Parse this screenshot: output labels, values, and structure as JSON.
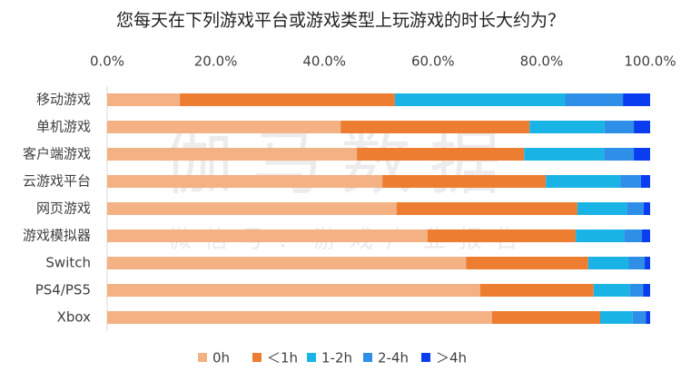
{
  "chart_data": {
    "type": "stacked-bar-horizontal",
    "title": "您每天在下列游戏平台或游戏类型上玩游戏的时长大约为？",
    "watermark": "伽马数据",
    "watermark_subtitle": "微信号：游戏产业报告",
    "categories": [
      "移动游戏",
      "单机游戏",
      "客户端游戏",
      "云游戏平台",
      "网页游戏",
      "游戏模拟器",
      "Switch",
      "PS4/PS5",
      "Xbox"
    ],
    "series": [
      {
        "name": "0h",
        "color": "#f4b183",
        "values": [
          13.4,
          43.0,
          46.0,
          50.7,
          53.3,
          59.0,
          66.1,
          68.7,
          70.9
        ]
      },
      {
        "name": "＜1h",
        "color": "#ed7d31",
        "values": [
          39.6,
          34.8,
          30.8,
          30.1,
          33.3,
          27.3,
          22.5,
          20.9,
          19.9
        ]
      },
      {
        "name": "1-2h",
        "color": "#1ab3e6",
        "values": [
          31.3,
          13.8,
          14.7,
          13.7,
          9.1,
          8.9,
          7.4,
          6.7,
          6.0
        ]
      },
      {
        "name": "2-4h",
        "color": "#2e8fe8",
        "values": [
          10.7,
          5.4,
          5.5,
          3.8,
          3.1,
          3.3,
          3.0,
          2.4,
          2.4
        ]
      },
      {
        "name": "＞4h",
        "color": "#0b3df0",
        "values": [
          5.0,
          3.0,
          3.0,
          1.7,
          1.2,
          1.5,
          1.0,
          1.3,
          0.8
        ]
      }
    ],
    "xlim": [
      0,
      100
    ],
    "xticks": [
      {
        "value": 0,
        "label": "0.0%"
      },
      {
        "value": 20,
        "label": "20.0%"
      },
      {
        "value": 40,
        "label": "40.0%"
      },
      {
        "value": 60,
        "label": "60.0%"
      },
      {
        "value": 80,
        "label": "80.0%"
      },
      {
        "value": 100,
        "label": "100.0%"
      }
    ],
    "legend": "bottom"
  }
}
